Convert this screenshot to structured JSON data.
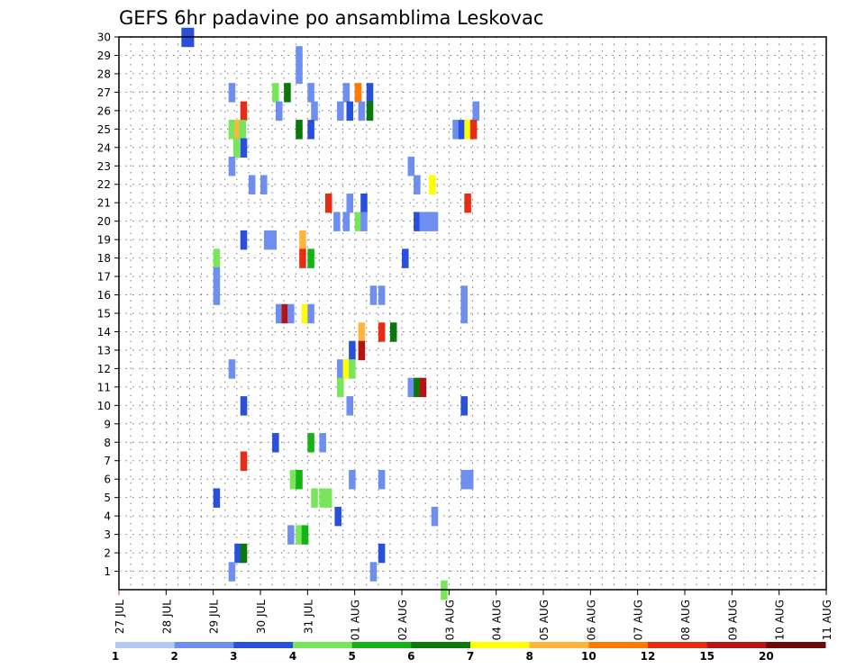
{
  "chart_data": {
    "type": "heatmap",
    "title": "GEFS 6hr padavine po ansamblima Leskovac",
    "xlabel": "",
    "ylabel": "",
    "x_tick_labels": [
      "27 JUL",
      "28 JUL",
      "29 JUL",
      "30 JUL",
      "31 JUL",
      "01 AUG",
      "02 AUG",
      "03 AUG",
      "04 AUG",
      "05 AUG",
      "06 AUG",
      "07 AUG",
      "08 AUG",
      "09 AUG",
      "10 AUG",
      "11 AUG"
    ],
    "x_range_steps": [
      0,
      60
    ],
    "steps_per_day": 4,
    "y_ticks": [
      1,
      2,
      3,
      4,
      5,
      6,
      7,
      8,
      9,
      10,
      11,
      12,
      13,
      14,
      15,
      16,
      17,
      18,
      19,
      20,
      21,
      22,
      23,
      24,
      25,
      26,
      27,
      28,
      29,
      30
    ],
    "y_range": [
      0,
      30
    ],
    "grid": true,
    "legend": {
      "placement": "bottom",
      "labels": [
        "1",
        "2",
        "3",
        "4",
        "5",
        "6",
        "7",
        "8",
        "10",
        "12",
        "15",
        "20"
      ],
      "colors": [
        "#b4c8f5",
        "#6e8ff0",
        "#2850dc",
        "#78e65a",
        "#14b414",
        "#0a780a",
        "#ffff00",
        "#ffb43c",
        "#ff7800",
        "#e62d14",
        "#b41414",
        "#6e0a0a"
      ]
    },
    "cells": [
      [
        5.3,
        30,
        2
      ],
      [
        5.8,
        30,
        2
      ],
      [
        15,
        29,
        1
      ],
      [
        15,
        28,
        1
      ],
      [
        9.3,
        27,
        1
      ],
      [
        13,
        27,
        3
      ],
      [
        14,
        27,
        5
      ],
      [
        16,
        27,
        1
      ],
      [
        19,
        27,
        1
      ],
      [
        20,
        27,
        8
      ],
      [
        21,
        27,
        2
      ],
      [
        10.3,
        26,
        9
      ],
      [
        13.3,
        26,
        1
      ],
      [
        16.3,
        26,
        1
      ],
      [
        18.5,
        26,
        1
      ],
      [
        19.3,
        26,
        2
      ],
      [
        20.3,
        26,
        1
      ],
      [
        21,
        26,
        5
      ],
      [
        30,
        26,
        1
      ],
      [
        9.3,
        25,
        3
      ],
      [
        9.8,
        25,
        7
      ],
      [
        10.2,
        25,
        3
      ],
      [
        15,
        25,
        5
      ],
      [
        16,
        25,
        2
      ],
      [
        28.3,
        25,
        1
      ],
      [
        28.8,
        25,
        2
      ],
      [
        29.3,
        25,
        6
      ],
      [
        29.8,
        25,
        9
      ],
      [
        9.7,
        24,
        3
      ],
      [
        10.3,
        24,
        2
      ],
      [
        9.3,
        23,
        1
      ],
      [
        24.5,
        23,
        1
      ],
      [
        11,
        22,
        1
      ],
      [
        12,
        22,
        1
      ],
      [
        25,
        22,
        1
      ],
      [
        26.3,
        22,
        6
      ],
      [
        17.5,
        21,
        9
      ],
      [
        19.3,
        21,
        1
      ],
      [
        20.5,
        21,
        2
      ],
      [
        29.3,
        21,
        9
      ],
      [
        18.2,
        20,
        1
      ],
      [
        19,
        20,
        1
      ],
      [
        20,
        20,
        3
      ],
      [
        20.5,
        20,
        1
      ],
      [
        25,
        20,
        2
      ],
      [
        25.5,
        20,
        1
      ],
      [
        26,
        20,
        1
      ],
      [
        26.5,
        20,
        1
      ],
      [
        10.3,
        19,
        2
      ],
      [
        12.3,
        19,
        1
      ],
      [
        12.8,
        19,
        1
      ],
      [
        15.3,
        19,
        7
      ],
      [
        8,
        18,
        3
      ],
      [
        15.3,
        18,
        9
      ],
      [
        16,
        18,
        4
      ],
      [
        24,
        18,
        2
      ],
      [
        8,
        17,
        1
      ],
      [
        8,
        16,
        1
      ],
      [
        21.3,
        16,
        1
      ],
      [
        22,
        16,
        1
      ],
      [
        29,
        16,
        1
      ],
      [
        13.3,
        15,
        1
      ],
      [
        13.8,
        15,
        10
      ],
      [
        14.3,
        15,
        1
      ],
      [
        15.5,
        15,
        6
      ],
      [
        16,
        15,
        1
      ],
      [
        29,
        15,
        1
      ],
      [
        20.3,
        14,
        7
      ],
      [
        22,
        14,
        9
      ],
      [
        23,
        14,
        5
      ],
      [
        19.5,
        13,
        2
      ],
      [
        20.3,
        13,
        10
      ],
      [
        9.3,
        12,
        1
      ],
      [
        18.5,
        12,
        1
      ],
      [
        19,
        12,
        6
      ],
      [
        19.5,
        12,
        3
      ],
      [
        18.5,
        11,
        3
      ],
      [
        24.5,
        11,
        1
      ],
      [
        25,
        11,
        5
      ],
      [
        25.5,
        11,
        10
      ],
      [
        10.3,
        10,
        2
      ],
      [
        19.3,
        10,
        1
      ],
      [
        29,
        10,
        2
      ],
      [
        13,
        8,
        2
      ],
      [
        16,
        8,
        4
      ],
      [
        17,
        8,
        1
      ],
      [
        10.3,
        7,
        9
      ],
      [
        14.5,
        6,
        3
      ],
      [
        15,
        6,
        4
      ],
      [
        19.5,
        6,
        1
      ],
      [
        22,
        6,
        1
      ],
      [
        29,
        6,
        1
      ],
      [
        29.5,
        6,
        1
      ],
      [
        8,
        5,
        2
      ],
      [
        16.3,
        5,
        3
      ],
      [
        17,
        5,
        3
      ],
      [
        17.5,
        5,
        3
      ],
      [
        18.3,
        4,
        2
      ],
      [
        26.5,
        4,
        1
      ],
      [
        14.3,
        3,
        1
      ],
      [
        15,
        3,
        3
      ],
      [
        15.5,
        3,
        4
      ],
      [
        9.8,
        2,
        2
      ],
      [
        10.3,
        2,
        5
      ],
      [
        22,
        2,
        2
      ],
      [
        9.3,
        1,
        1
      ],
      [
        21.3,
        1,
        1
      ],
      [
        27.3,
        0,
        3
      ]
    ]
  }
}
